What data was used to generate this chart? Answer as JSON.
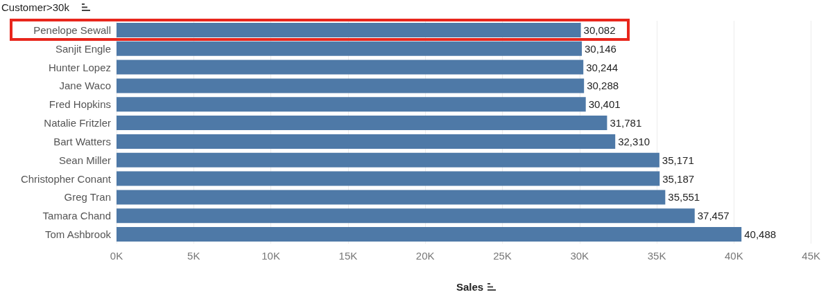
{
  "chart_data": {
    "type": "bar",
    "orientation": "horizontal",
    "ylabel": "Customer>30k",
    "xlabel": "Sales",
    "categories": [
      "Penelope Sewall",
      "Sanjit Engle",
      "Hunter Lopez",
      "Jane Waco",
      "Fred Hopkins",
      "Natalie Fritzler",
      "Bart Watters",
      "Sean Miller",
      "Christopher Conant",
      "Greg Tran",
      "Tamara Chand",
      "Tom Ashbrook"
    ],
    "values": [
      30082,
      30146,
      30244,
      30288,
      30401,
      31781,
      32310,
      35171,
      35187,
      35551,
      37457,
      40488
    ],
    "value_labels": [
      "30,082",
      "30,146",
      "30,244",
      "30,288",
      "30,401",
      "31,781",
      "32,310",
      "35,171",
      "35,187",
      "35,551",
      "37,457",
      "40,488"
    ],
    "color": "#4e79a7",
    "xlim": [
      0,
      45000
    ],
    "xticks": [
      {
        "value": 0,
        "label": "0K"
      },
      {
        "value": 5000,
        "label": "5K"
      },
      {
        "value": 10000,
        "label": "10K"
      },
      {
        "value": 15000,
        "label": "15K"
      },
      {
        "value": 20000,
        "label": "20K"
      },
      {
        "value": 25000,
        "label": "25K"
      },
      {
        "value": 30000,
        "label": "30K"
      },
      {
        "value": 35000,
        "label": "35K"
      },
      {
        "value": 40000,
        "label": "40K"
      },
      {
        "value": 45000,
        "label": "45K"
      }
    ],
    "grid": "x"
  }
}
